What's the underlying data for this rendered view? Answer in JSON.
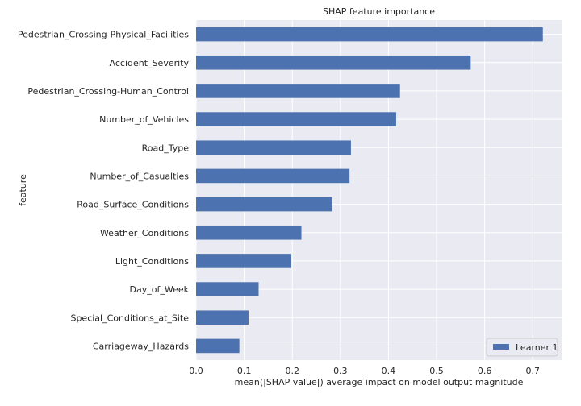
{
  "chart_data": {
    "type": "bar",
    "orientation": "horizontal",
    "title": "SHAP feature importance",
    "xlabel": "mean(|SHAP value|) average impact on model output magnitude",
    "ylabel": "feature",
    "xlim": [
      0,
      0.76
    ],
    "xticks": [
      0.0,
      0.1,
      0.2,
      0.3,
      0.4,
      0.5,
      0.6,
      0.7
    ],
    "xtick_labels": [
      "0.0",
      "0.1",
      "0.2",
      "0.3",
      "0.4",
      "0.5",
      "0.6",
      "0.7"
    ],
    "grid": true,
    "legend_position": "bottom-right",
    "categories": [
      "Pedestrian_Crossing-Physical_Facilities",
      "Accident_Severity",
      "Pedestrian_Crossing-Human_Control",
      "Number_of_Vehicles",
      "Road_Type",
      "Number_of_Casualties",
      "Road_Surface_Conditions",
      "Weather_Conditions",
      "Light_Conditions",
      "Day_of_Week",
      "Special_Conditions_at_Site",
      "Carriageway_Hazards"
    ],
    "series": [
      {
        "name": "Learner 1",
        "color": "#4c72b0",
        "values": [
          0.721,
          0.571,
          0.424,
          0.416,
          0.322,
          0.319,
          0.283,
          0.219,
          0.198,
          0.13,
          0.109,
          0.09
        ]
      }
    ]
  }
}
